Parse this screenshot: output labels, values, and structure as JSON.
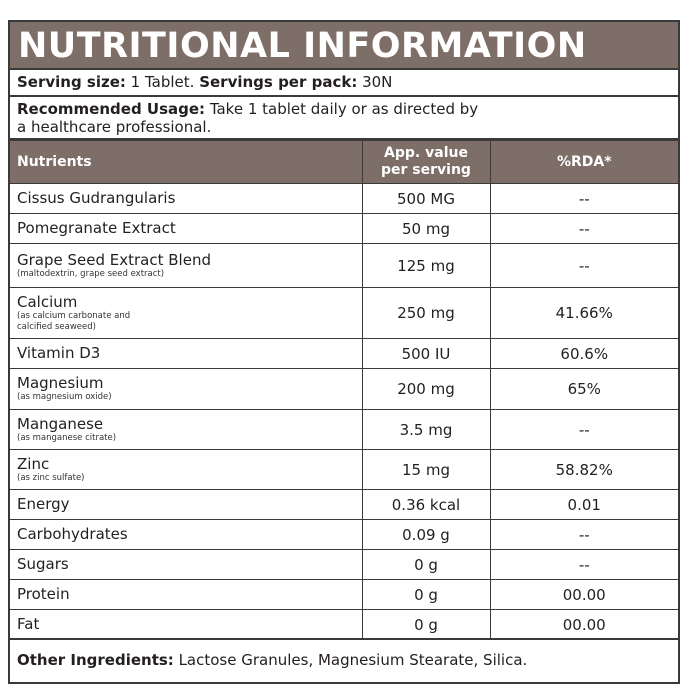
{
  "title": "NUTRITIONAL INFORMATION",
  "serving": {
    "size_label": "Serving size:",
    "size_value": " 1 Tablet. ",
    "per_pack_label": "Servings per pack:",
    "per_pack_value": " 30N"
  },
  "usage": {
    "label": "Recommended Usage:",
    "text_line1": " Take 1 tablet daily or as directed by",
    "text_line2": "a healthcare professional."
  },
  "table": {
    "headers": [
      "Nutrients",
      "App. value per serving",
      "%RDA*"
    ],
    "header_value_line1": "App. value",
    "header_value_line2": "per serving",
    "rows": [
      {
        "name": "Cissus Gudrangularis",
        "sub": "",
        "value": "500 MG",
        "rda": "--",
        "h": 30
      },
      {
        "name": "Pomegranate Extract",
        "sub": "",
        "value": "50 mg",
        "rda": "--",
        "h": 30
      },
      {
        "name": "Grape Seed Extract Blend",
        "sub": "(maltodextrin, grape seed extract)",
        "value": "125 mg",
        "rda": "--",
        "h": 44
      },
      {
        "name": "Calcium",
        "sub": "(as calcium carbonate and calcified seaweed)",
        "sub1": "(as calcium carbonate and",
        "sub2": "calcified seaweed)",
        "value": "250 mg",
        "rda": "41.66%",
        "h": 51
      },
      {
        "name": "Vitamin D3",
        "sub": "",
        "value": "500 IU",
        "rda": "60.6%",
        "h": 30
      },
      {
        "name": "Magnesium",
        "sub": "(as magnesium oxide)",
        "value": "200 mg",
        "rda": "65%",
        "h": 41
      },
      {
        "name": "Manganese",
        "sub": "(as manganese citrate)",
        "value": "3.5 mg",
        "rda": "--",
        "h": 40
      },
      {
        "name": "Zinc",
        "sub": "(as zinc sulfate)",
        "value": "15 mg",
        "rda": "58.82%",
        "h": 40
      },
      {
        "name": "Energy",
        "sub": "",
        "value": "0.36 kcal",
        "rda": "0.01",
        "h": 30
      },
      {
        "name": "Carbohydrates",
        "sub": "",
        "value": "0.09 g",
        "rda": "--",
        "h": 30
      },
      {
        "name": "Sugars",
        "sub": "",
        "value": "0 g",
        "rda": "--",
        "h": 30
      },
      {
        "name": "Protein",
        "sub": "",
        "value": "0 g",
        "rda": "00.00",
        "h": 30
      },
      {
        "name": "Fat",
        "sub": "",
        "value": "0 g",
        "rda": "00.00",
        "h": 30
      }
    ]
  },
  "other": {
    "label": "Other Ingredients:",
    "text": " Lactose Granules, Magnesium Stearate, Silica."
  },
  "colors": {
    "header_bg": "#7d6e67",
    "border": "#3a3a3a",
    "header_text": "#ffffff"
  }
}
